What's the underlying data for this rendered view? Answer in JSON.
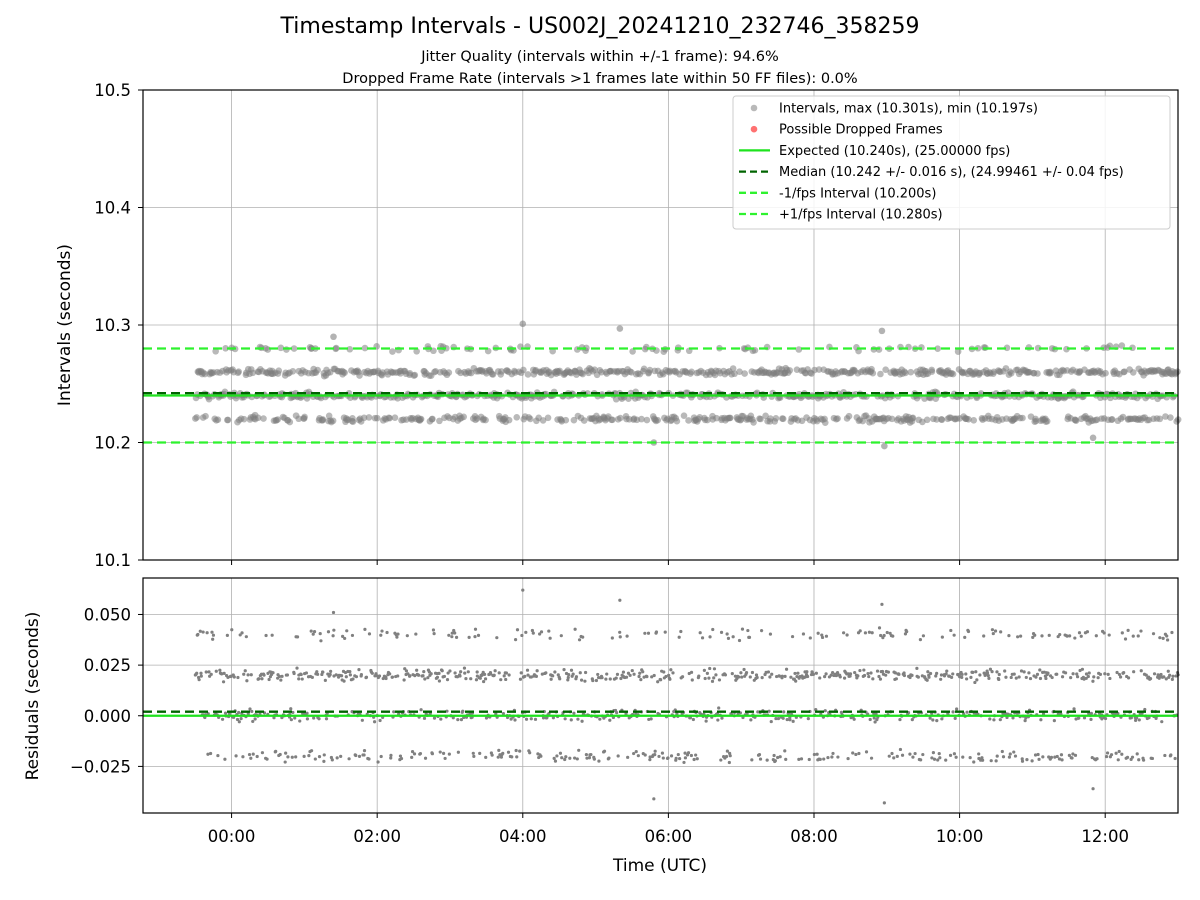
{
  "title": "Timestamp Intervals - US002J_20241210_232746_358259",
  "subtitle_lines": [
    "Jitter Quality (intervals within +/-1 frame): 94.6%",
    "Dropped Frame Rate (intervals >1 frames late within 50 FF files): 0.0%"
  ],
  "colors": {
    "points": "#808080",
    "dropped": "#ff4d4d",
    "expected": "#1ee31e",
    "median": "#006400",
    "fps_interval": "#2ef22e"
  },
  "chart_data": [
    {
      "type": "scatter",
      "panel": "intervals",
      "ylabel": "Intervals (seconds)",
      "ylim": [
        10.1,
        10.5
      ],
      "yticks": [
        10.1,
        10.2,
        10.3,
        10.4,
        10.5
      ],
      "ytick_labels": [
        "10.1",
        "10.2",
        "10.3",
        "10.4",
        "10.5"
      ],
      "xlim": [
        "-01:13",
        "13:00"
      ],
      "grid": true,
      "legend_position": "top-right",
      "legend": [
        "Intervals, max (10.301s), min (10.197s)",
        "Possible Dropped Frames",
        "Expected (10.240s), (25.00000 fps)",
        "Median (10.242 +/- 0.016 s), (24.99461 +/- 0.04 fps)",
        "-1/fps Interval (10.200s)",
        "+1/fps Interval (10.280s)"
      ],
      "max_interval": 10.301,
      "min_interval": 10.197,
      "dropped_frames_count": 0,
      "reference_lines": [
        {
          "name": "Expected",
          "y": 10.24,
          "style": "solid"
        },
        {
          "name": "Median",
          "y": 10.242,
          "style": "dashed"
        },
        {
          "name": "-1/fps Interval",
          "y": 10.2,
          "style": "dashed"
        },
        {
          "name": "+1/fps Interval",
          "y": 10.28,
          "style": "dashed"
        }
      ],
      "data_range": [
        "-00:30",
        "13:00"
      ],
      "interval_bands": [
        {
          "y": 10.22,
          "weight": 0.27
        },
        {
          "y": 10.24,
          "weight": 0.33
        },
        {
          "y": 10.26,
          "weight": 0.34
        },
        {
          "y": 10.28,
          "weight": 0.06
        }
      ],
      "outliers": [
        {
          "x": "01:24",
          "y": 10.29
        },
        {
          "x": "04:00",
          "y": 10.301
        },
        {
          "x": "05:20",
          "y": 10.297
        },
        {
          "x": "08:56",
          "y": 10.295
        },
        {
          "x": "08:58",
          "y": 10.197
        },
        {
          "x": "05:48",
          "y": 10.2
        },
        {
          "x": "11:50",
          "y": 10.204
        }
      ]
    },
    {
      "type": "scatter",
      "panel": "residuals",
      "ylabel": "Residuals (seconds)",
      "xlabel": "Time (UTC)",
      "ylim": [
        -0.048,
        0.068
      ],
      "yticks": [
        -0.025,
        0.0,
        0.025,
        0.05
      ],
      "ytick_labels": [
        "−0.025",
        "0.000",
        "0.025",
        "0.050"
      ],
      "xticks": [
        "00:00",
        "02:00",
        "04:00",
        "06:00",
        "08:00",
        "10:00",
        "12:00"
      ],
      "xlim": [
        "-01:13",
        "13:00"
      ],
      "grid": true,
      "reference_lines": [
        {
          "name": "Expected",
          "y": 0.0,
          "style": "solid"
        },
        {
          "name": "Median",
          "y": 0.002,
          "style": "dashed"
        }
      ],
      "data_range": [
        "-00:30",
        "13:00"
      ],
      "residual_bands": [
        {
          "y": -0.02,
          "weight": 0.18
        },
        {
          "y": 0.0,
          "weight": 0.3
        },
        {
          "y": 0.02,
          "weight": 0.4
        },
        {
          "y": 0.04,
          "weight": 0.12
        }
      ],
      "outliers": [
        {
          "x": "01:24",
          "y": 0.051
        },
        {
          "x": "04:00",
          "y": 0.062
        },
        {
          "x": "05:20",
          "y": 0.057
        },
        {
          "x": "08:56",
          "y": 0.055
        },
        {
          "x": "08:58",
          "y": -0.043
        },
        {
          "x": "05:48",
          "y": -0.041
        },
        {
          "x": "11:50",
          "y": -0.036
        }
      ]
    }
  ]
}
